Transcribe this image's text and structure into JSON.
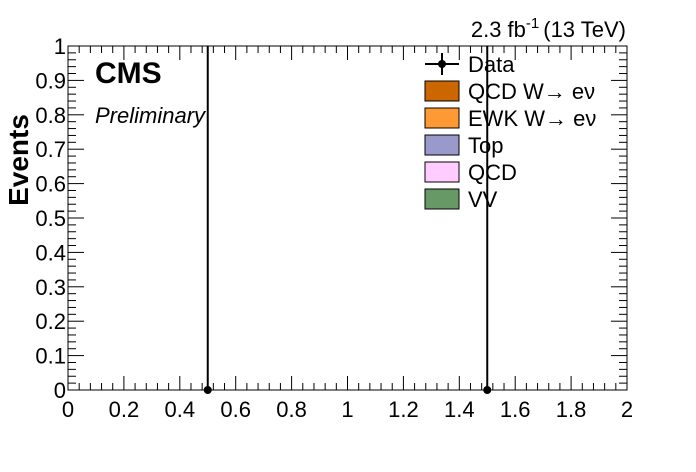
{
  "chart_data": {
    "type": "scatter",
    "ylabel": "Events",
    "xlabel": "",
    "xlim": [
      0,
      2
    ],
    "ylim": [
      0,
      1
    ],
    "x_ticks": [
      "0",
      "0.2",
      "0.4",
      "0.6",
      "0.8",
      "1",
      "1.2",
      "1.4",
      "1.6",
      "1.8",
      "2"
    ],
    "y_ticks": [
      "0",
      "0.1",
      "0.2",
      "0.3",
      "0.4",
      "0.5",
      "0.6",
      "0.7",
      "0.8",
      "0.9",
      "1"
    ],
    "lumi_text": "2.3 fb",
    "lumi_sup": "-1",
    "lumi_energy": "(13 TeV)",
    "cms_label": "CMS",
    "prelim_label": "Preliminary",
    "legend_placement": "top-right",
    "legend": [
      {
        "label": "Data",
        "kind": "marker",
        "color": "#000000"
      },
      {
        "label": "QCD W→ eν",
        "kind": "box",
        "color": "#cc6600"
      },
      {
        "label": "EWK W→ eν",
        "kind": "box",
        "color": "#ff9933"
      },
      {
        "label": "Top",
        "kind": "box",
        "color": "#9999cc"
      },
      {
        "label": "QCD",
        "kind": "box",
        "color": "#ffccff"
      },
      {
        "label": "VV",
        "kind": "box",
        "color": "#669966"
      }
    ],
    "data_points": [
      {
        "x": 0.5,
        "y": 0,
        "err_low": 0,
        "err_high": 1
      },
      {
        "x": 1.5,
        "y": 0,
        "err_low": 0,
        "err_high": 1
      }
    ],
    "grid": false
  }
}
